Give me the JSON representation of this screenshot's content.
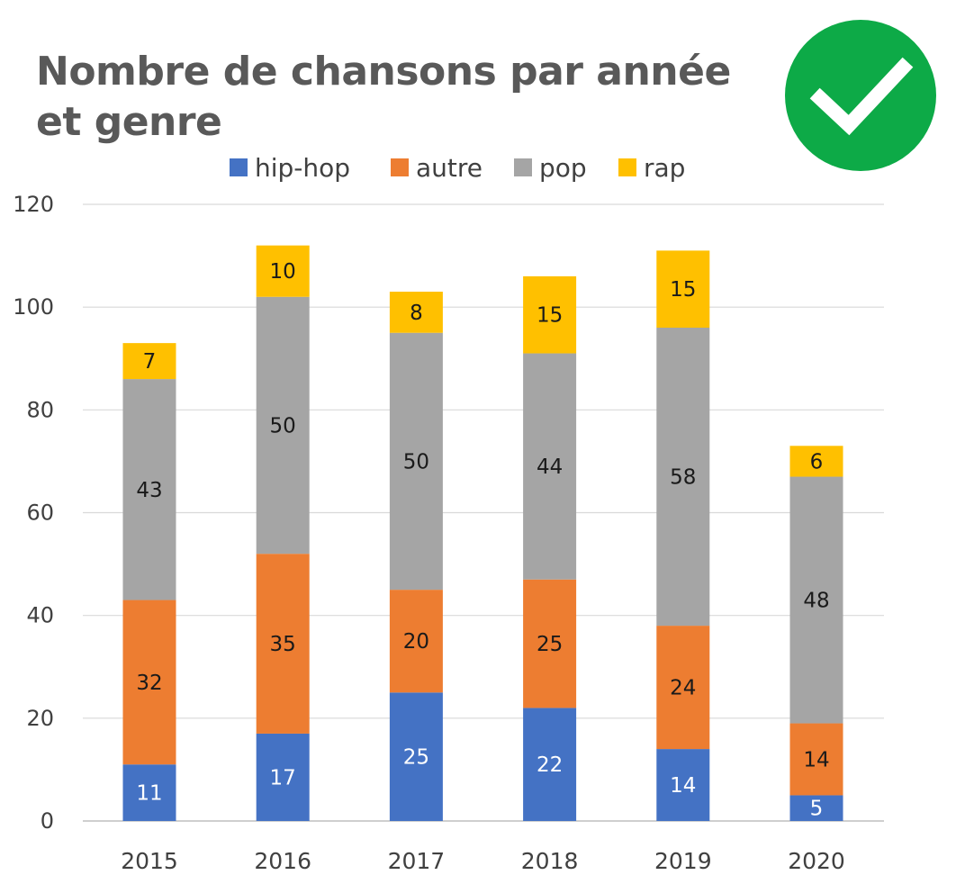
{
  "header": {
    "title_line1": "Nombre de chansons par année",
    "title_line2": "et genre",
    "badge_icon": "checkmark-icon",
    "badge_color": "#0DAA47"
  },
  "chart_data": {
    "type": "bar",
    "stacked": true,
    "title": "Nombre de chansons par année et genre",
    "xlabel": "",
    "ylabel": "",
    "categories": [
      "2015",
      "2016",
      "2017",
      "2018",
      "2019",
      "2020"
    ],
    "series": [
      {
        "name": "hip-hop",
        "color": "#4472C4",
        "label_color": "#ffffff",
        "values": [
          11,
          17,
          25,
          22,
          14,
          5
        ]
      },
      {
        "name": "autre",
        "color": "#ED7D31",
        "label_color": "#1a1a1a",
        "values": [
          32,
          35,
          20,
          25,
          24,
          14
        ]
      },
      {
        "name": "pop",
        "color": "#A5A5A5",
        "label_color": "#1a1a1a",
        "values": [
          43,
          50,
          50,
          44,
          58,
          48
        ]
      },
      {
        "name": "rap",
        "color": "#FFC000",
        "label_color": "#1a1a1a",
        "values": [
          7,
          10,
          8,
          15,
          15,
          6
        ]
      }
    ],
    "ylim": [
      0,
      120
    ],
    "yticks": [
      0,
      20,
      40,
      60,
      80,
      100,
      120
    ],
    "grid": true,
    "legend_position": "top"
  }
}
